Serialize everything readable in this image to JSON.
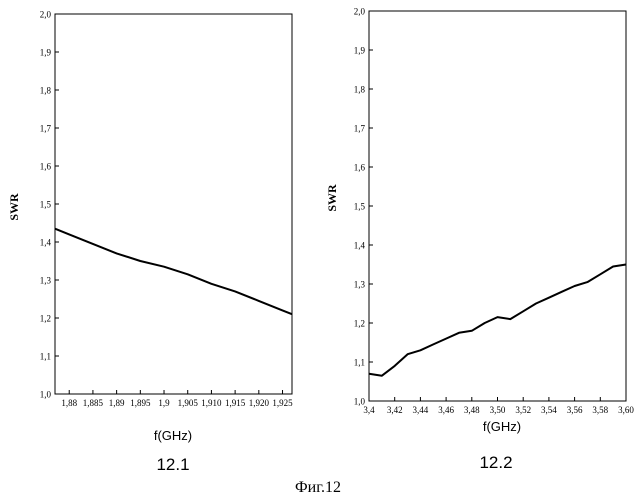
{
  "figure_caption": "Фиг.12",
  "chart_data": [
    {
      "type": "line",
      "panel_label": "12.1",
      "xlabel": "f(GHz)",
      "ylabel": "SWR",
      "xlim": [
        1.877,
        1.927
      ],
      "ylim": [
        1.0,
        2.0
      ],
      "x_ticks": [
        "1,88",
        "1,885",
        "1,89",
        "1,895",
        "1,9",
        "1,905",
        "1,910",
        "1,915",
        "1,920",
        "1,925"
      ],
      "x_tick_values": [
        1.88,
        1.885,
        1.89,
        1.895,
        1.9,
        1.905,
        1.91,
        1.915,
        1.92,
        1.925
      ],
      "y_ticks": [
        "1,0",
        "1,1",
        "1,2",
        "1,3",
        "1,4",
        "1,5",
        "1,6",
        "1,7",
        "1,8",
        "1,9",
        "2,0"
      ],
      "y_tick_values": [
        1.0,
        1.1,
        1.2,
        1.3,
        1.4,
        1.5,
        1.6,
        1.7,
        1.8,
        1.9,
        2.0
      ],
      "grid": false,
      "series": [
        {
          "x": [
            1.877,
            1.88,
            1.885,
            1.89,
            1.895,
            1.9,
            1.905,
            1.91,
            1.915,
            1.92,
            1.925,
            1.927
          ],
          "y": [
            1.435,
            1.42,
            1.395,
            1.37,
            1.35,
            1.335,
            1.315,
            1.29,
            1.27,
            1.245,
            1.22,
            1.21
          ]
        }
      ]
    },
    {
      "type": "line",
      "panel_label": "12.2",
      "xlabel": "f(GHz)",
      "ylabel": "SWR",
      "xlim": [
        3.4,
        3.6
      ],
      "ylim": [
        1.0,
        2.0
      ],
      "x_ticks": [
        "3,4",
        "3,42",
        "3,44",
        "3,46",
        "3,48",
        "3,50",
        "3,52",
        "3,54",
        "3,56",
        "3,58",
        "3,60"
      ],
      "x_tick_values": [
        3.4,
        3.42,
        3.44,
        3.46,
        3.48,
        3.5,
        3.52,
        3.54,
        3.56,
        3.58,
        3.6
      ],
      "y_ticks": [
        "1,0",
        "1,1",
        "1,2",
        "1,3",
        "1,4",
        "1,5",
        "1,6",
        "1,7",
        "1,8",
        "1,9",
        "2,0"
      ],
      "y_tick_values": [
        1.0,
        1.1,
        1.2,
        1.3,
        1.4,
        1.5,
        1.6,
        1.7,
        1.8,
        1.9,
        2.0
      ],
      "grid": false,
      "series": [
        {
          "x": [
            3.4,
            3.41,
            3.42,
            3.43,
            3.44,
            3.45,
            3.46,
            3.47,
            3.48,
            3.49,
            3.5,
            3.51,
            3.52,
            3.53,
            3.54,
            3.55,
            3.56,
            3.57,
            3.58,
            3.59,
            3.6
          ],
          "y": [
            1.07,
            1.065,
            1.09,
            1.12,
            1.13,
            1.145,
            1.16,
            1.175,
            1.18,
            1.2,
            1.215,
            1.21,
            1.23,
            1.25,
            1.265,
            1.28,
            1.295,
            1.305,
            1.325,
            1.345,
            1.35
          ]
        }
      ]
    }
  ]
}
